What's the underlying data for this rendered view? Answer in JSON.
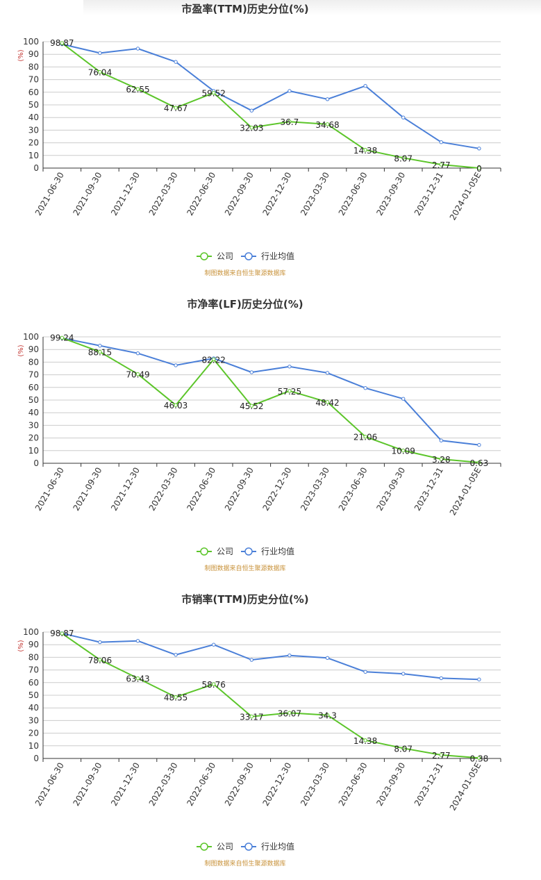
{
  "legend": {
    "company": "公司",
    "industry": "行业均值"
  },
  "source_note": "制图数据来自恒生聚源数据库",
  "colors": {
    "company": "#5cc52a",
    "industry": "#4a7fd8",
    "grid": "#cccccc",
    "axis": "#333333",
    "unit": "#c23531",
    "source": "#c8923a"
  },
  "chart_data": [
    {
      "type": "line",
      "title": "市盈率(TTM)历史分位(%)",
      "ylabel": "(%)",
      "ylim": [
        0,
        100
      ],
      "yticks": [
        0,
        10,
        20,
        30,
        40,
        50,
        60,
        70,
        80,
        90,
        100
      ],
      "grid": true,
      "legend_position": "bottom-center",
      "categories": [
        "2021-06-30",
        "2021-09-30",
        "2021-12-30",
        "2022-03-30",
        "2022-06-30",
        "2022-09-30",
        "2022-12-30",
        "2023-03-30",
        "2023-06-30",
        "2023-09-30",
        "2023-12-31",
        "2024-01-05E"
      ],
      "series": [
        {
          "name": "公司",
          "values": [
            98.87,
            76.04,
            62.55,
            47.67,
            59.52,
            32.03,
            36.7,
            34.68,
            14.38,
            8.07,
            2.77,
            0
          ],
          "labels": [
            "98.87",
            "76.04",
            "62.55",
            "47.67",
            "59.52",
            "32.03",
            "36.7",
            "34.68",
            "14.38",
            "8.07",
            "2.77",
            "0"
          ]
        },
        {
          "name": "行业均值",
          "values": [
            98,
            91,
            94.5,
            84,
            61,
            45.5,
            61,
            54.5,
            65,
            40,
            20.5,
            15.5
          ]
        }
      ]
    },
    {
      "type": "line",
      "title": "市净率(LF)历史分位(%)",
      "ylabel": "(%)",
      "ylim": [
        0,
        100
      ],
      "yticks": [
        0,
        10,
        20,
        30,
        40,
        50,
        60,
        70,
        80,
        90,
        100
      ],
      "grid": true,
      "legend_position": "bottom-center",
      "categories": [
        "2021-06-30",
        "2021-09-30",
        "2021-12-30",
        "2022-03-30",
        "2022-06-30",
        "2022-09-30",
        "2022-12-30",
        "2023-03-30",
        "2023-06-30",
        "2023-09-30",
        "2023-12-31",
        "2024-01-05E"
      ],
      "series": [
        {
          "name": "公司",
          "values": [
            99.24,
            88.15,
            70.49,
            46.03,
            82.22,
            45.52,
            57.25,
            48.42,
            21.06,
            10.09,
            3.28,
            0.63
          ],
          "labels": [
            "99.24",
            "88.15",
            "70.49",
            "46.03",
            "82.22",
            "45.52",
            "57.25",
            "48.42",
            "21.06",
            "10.09",
            "3.28",
            "0.63"
          ]
        },
        {
          "name": "行业均值",
          "values": [
            99,
            93,
            87,
            77.5,
            83,
            72,
            76.5,
            71.5,
            59.5,
            51,
            18,
            14.5
          ]
        }
      ]
    },
    {
      "type": "line",
      "title": "市销率(TTM)历史分位(%)",
      "ylabel": "(%)",
      "ylim": [
        0,
        100
      ],
      "yticks": [
        0,
        10,
        20,
        30,
        40,
        50,
        60,
        70,
        80,
        90,
        100
      ],
      "grid": true,
      "legend_position": "bottom-center",
      "categories": [
        "2021-06-30",
        "2021-09-30",
        "2021-12-30",
        "2022-03-30",
        "2022-06-30",
        "2022-09-30",
        "2022-12-30",
        "2023-03-30",
        "2023-06-30",
        "2023-09-30",
        "2023-12-31",
        "2024-01-05E"
      ],
      "series": [
        {
          "name": "公司",
          "values": [
            98.87,
            78.06,
            63.43,
            48.55,
            58.76,
            33.17,
            36.07,
            34.3,
            14.38,
            8.07,
            2.77,
            0.38
          ],
          "labels": [
            "98.87",
            "78.06",
            "63.43",
            "48.55",
            "58.76",
            "33.17",
            "36.07",
            "34.3",
            "14.38",
            "8.07",
            "2.77",
            "0.38"
          ]
        },
        {
          "name": "行业均值",
          "values": [
            99,
            92,
            93,
            82,
            90,
            78,
            81.5,
            79.5,
            68.5,
            67,
            63.5,
            62.5
          ]
        }
      ]
    }
  ]
}
